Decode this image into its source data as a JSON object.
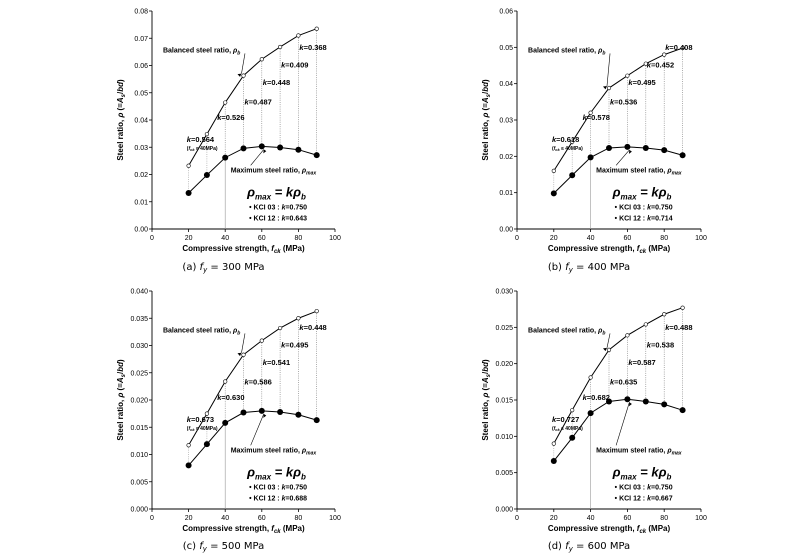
{
  "chart_data": [
    {
      "type": "line",
      "caption": "(a) f_y = 300 MPa",
      "caption_pre": "(a) ",
      "caption_var": "f",
      "caption_sub": "y",
      "caption_post": " = 300 MPa",
      "xlabel": "Compressive strength, f_ck (MPa)",
      "ylabel": "Steel ratio, ρ (=A_s/bd)",
      "xlim": [
        0,
        100
      ],
      "ylim": [
        0,
        0.08
      ],
      "xticks": [
        0,
        20,
        40,
        60,
        80,
        100
      ],
      "yticks": [
        "0.00",
        "0.01",
        "0.02",
        "0.03",
        "0.04",
        "0.05",
        "0.06",
        "0.07",
        "0.08"
      ],
      "x": [
        20,
        30,
        40,
        50,
        60,
        70,
        80,
        90
      ],
      "series": [
        {
          "name": "Balanced steel ratio, ρb",
          "marker": "open",
          "values": [
            0.0232,
            0.0348,
            0.0464,
            0.0563,
            0.0623,
            0.0668,
            0.071,
            0.0735
          ]
        },
        {
          "name": "Maximum steel ratio, ρmax",
          "marker": "filled",
          "values": [
            0.0132,
            0.0198,
            0.0262,
            0.0296,
            0.0303,
            0.0299,
            0.0291,
            0.0271
          ]
        }
      ],
      "k_labels": [
        "k=0.564",
        "k=0.526",
        "k=0.487",
        "k=0.448",
        "k=0.409",
        "k=0.368"
      ],
      "k_sub": "(f_ck ≤ 40MPa)",
      "formula": "ρmax = kρb",
      "bullets": [
        "• KCI 03 : k=0.750",
        "• KCI 12 : k=0.643"
      ]
    },
    {
      "type": "line",
      "caption": "(b) f_y = 400 MPa",
      "caption_pre": "(b) ",
      "caption_var": "f",
      "caption_sub": "y",
      "caption_post": " = 400 MPa",
      "xlabel": "Compressive strength, f_ck (MPa)",
      "ylabel": "Steel ratio, ρ (=A_s/bd)",
      "xlim": [
        0,
        100
      ],
      "ylim": [
        0,
        0.06
      ],
      "xticks": [
        0,
        20,
        40,
        60,
        80,
        100
      ],
      "yticks": [
        "0.00",
        "0.01",
        "0.02",
        "0.03",
        "0.04",
        "0.05",
        "0.06"
      ],
      "x": [
        20,
        30,
        40,
        50,
        60,
        70,
        80,
        90
      ],
      "series": [
        {
          "name": "Balanced steel ratio, ρb",
          "marker": "open",
          "values": [
            0.016,
            0.024,
            0.032,
            0.0388,
            0.0422,
            0.0455,
            0.048,
            0.0498
          ]
        },
        {
          "name": "Maximum steel ratio, ρmax",
          "marker": "filled",
          "values": [
            0.0098,
            0.0148,
            0.0197,
            0.0223,
            0.0226,
            0.0223,
            0.0217,
            0.0203
          ]
        }
      ],
      "k_labels": [
        "k=0.618",
        "k=0.578",
        "k=0.536",
        "k=0.495",
        "k=0.452",
        "k=0.408"
      ],
      "k_sub": "(f_ck ≤ 40MPa)",
      "formula": "ρmax = kρb",
      "bullets": [
        "• KCI 03 : k=0.750",
        "• KCI 12 : k=0.714"
      ]
    },
    {
      "type": "line",
      "caption": "(c) f_y = 500 MPa",
      "caption_pre": "(c) ",
      "caption_var": "f",
      "caption_sub": "y",
      "caption_post": " = 500 MPa",
      "xlabel": "Compressive strength, f_ck (MPa)",
      "ylabel": "Steel ratio, ρ (=A_s/bd)",
      "xlim": [
        0,
        100
      ],
      "ylim": [
        0,
        0.04
      ],
      "xticks": [
        0,
        20,
        40,
        60,
        80,
        100
      ],
      "yticks": [
        "0.000",
        "0.005",
        "0.010",
        "0.015",
        "0.020",
        "0.025",
        "0.030",
        "0.035",
        "0.040"
      ],
      "x": [
        20,
        30,
        40,
        50,
        60,
        70,
        80,
        90
      ],
      "series": [
        {
          "name": "Balanced steel ratio, ρb",
          "marker": "open",
          "values": [
            0.0117,
            0.0175,
            0.0234,
            0.0283,
            0.0309,
            0.0332,
            0.035,
            0.0363
          ]
        },
        {
          "name": "Maximum steel ratio, ρmax",
          "marker": "filled",
          "values": [
            0.008,
            0.0119,
            0.0158,
            0.0177,
            0.018,
            0.0178,
            0.0173,
            0.0163
          ]
        }
      ],
      "k_labels": [
        "k=0.673",
        "k=0.630",
        "k=0.586",
        "k=0.541",
        "k=0.495",
        "k=0.448"
      ],
      "k_sub": "(f_ck ≤ 40MPa)",
      "formula": "ρmax = kρb",
      "bullets": [
        "• KCI 03 : k=0.750",
        "• KCI 12 : k=0.688"
      ]
    },
    {
      "type": "line",
      "caption": "(d) f_y = 600 MPa",
      "caption_pre": "(d) ",
      "caption_var": "f",
      "caption_sub": "y",
      "caption_post": " = 600 MPa",
      "xlabel": "Compressive strength, f_ck (MPa)",
      "ylabel": "Steel ratio, ρ (=A_s/bd)",
      "xlim": [
        0,
        100
      ],
      "ylim": [
        0,
        0.03
      ],
      "xticks": [
        0,
        20,
        40,
        60,
        80,
        100
      ],
      "yticks": [
        "0.000",
        "0.005",
        "0.010",
        "0.015",
        "0.020",
        "0.025",
        "0.030"
      ],
      "x": [
        20,
        30,
        40,
        50,
        60,
        70,
        80,
        90
      ],
      "series": [
        {
          "name": "Balanced steel ratio, ρb",
          "marker": "open",
          "values": [
            0.009,
            0.0136,
            0.0181,
            0.0219,
            0.0239,
            0.0254,
            0.0268,
            0.0277
          ]
        },
        {
          "name": "Maximum steel ratio, ρmax",
          "marker": "filled",
          "values": [
            0.0066,
            0.0098,
            0.0132,
            0.0148,
            0.0151,
            0.0148,
            0.0144,
            0.0136
          ]
        }
      ],
      "k_labels": [
        "k=0.727",
        "k=0.682",
        "k=0.635",
        "k=0.587",
        "k=0.538",
        "k=0.488"
      ],
      "k_sub": "(f_ck ≤ 40MPa)",
      "formula": "ρmax = kρb",
      "bullets": [
        "• KCI 03 : k=0.750",
        "• KCI 12 : k=0.667"
      ]
    }
  ]
}
